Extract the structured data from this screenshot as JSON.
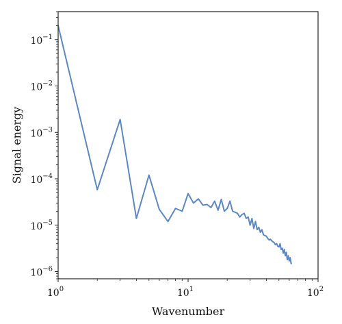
{
  "chart_data": {
    "type": "line",
    "title": "",
    "xlabel": "Wavenumber",
    "ylabel": "Signal energy",
    "xscale": "log",
    "yscale": "log",
    "xlim": [
      1,
      100
    ],
    "ylim": [
      7e-07,
      0.4
    ],
    "grid": false,
    "legend": "none",
    "line_color": "#5b87c5",
    "x_ticks": [
      {
        "value": 1,
        "base": "10",
        "exp": "0"
      },
      {
        "value": 10,
        "base": "10",
        "exp": "1"
      },
      {
        "value": 100,
        "base": "10",
        "exp": "2"
      }
    ],
    "y_ticks": [
      {
        "value": 1e-06,
        "base": "10",
        "exp": "−6"
      },
      {
        "value": 1e-05,
        "base": "10",
        "exp": "−5"
      },
      {
        "value": 0.0001,
        "base": "10",
        "exp": "−4"
      },
      {
        "value": 0.001,
        "base": "10",
        "exp": "−3"
      },
      {
        "value": 0.01,
        "base": "10",
        "exp": "−2"
      },
      {
        "value": 0.1,
        "base": "10",
        "exp": "−1"
      }
    ],
    "series": [
      {
        "x": [
          1,
          2,
          3,
          4,
          5,
          6,
          7,
          8,
          9,
          10,
          11,
          12,
          13,
          14,
          15,
          16,
          17,
          18,
          19,
          20,
          21,
          22,
          23,
          24,
          25,
          26,
          27,
          28,
          29,
          30,
          31,
          32,
          33,
          34,
          35,
          36,
          37,
          38,
          39,
          40,
          41,
          42,
          43,
          44,
          45,
          46,
          47,
          48,
          49,
          50,
          51,
          52,
          53,
          54,
          55,
          56,
          57,
          58,
          59,
          60,
          61,
          62,
          63
        ],
        "y": [
          0.2,
          5.8e-05,
          0.0019,
          1.4e-05,
          0.00012,
          2.2e-05,
          1.2e-05,
          2.3e-05,
          2e-05,
          4.8e-05,
          3e-05,
          3.7e-05,
          2.7e-05,
          2.8e-05,
          2.4e-05,
          3.3e-05,
          2.1e-05,
          3.6e-05,
          2e-05,
          2.3e-05,
          3.3e-05,
          2e-05,
          1.9e-05,
          1.8e-05,
          1.5e-05,
          1.7e-05,
          1.8e-05,
          1.4e-05,
          1.5e-05,
          1e-05,
          1.4e-05,
          8.5e-06,
          1.2e-05,
          8e-06,
          9e-06,
          7e-06,
          8e-06,
          6.2e-06,
          6e-06,
          5.8e-06,
          5.2e-06,
          4.8e-06,
          5e-06,
          4.6e-06,
          4.4e-06,
          4.2e-06,
          3.8e-06,
          4e-06,
          3.5e-06,
          3.4e-06,
          4e-06,
          3e-06,
          3.2e-06,
          2.5e-06,
          3e-06,
          2.2e-06,
          2.6e-06,
          1.8e-06,
          2.2e-06,
          1.7e-06,
          2e-06,
          1.5e-06,
          1.5e-06
        ]
      }
    ]
  }
}
